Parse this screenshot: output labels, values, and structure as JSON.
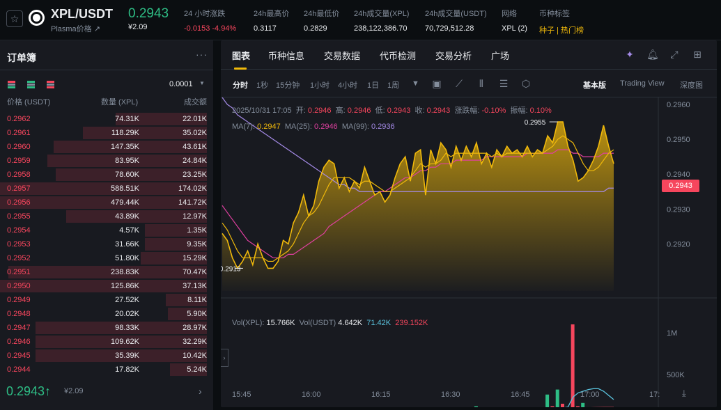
{
  "header": {
    "symbol": "XPL/USDT",
    "subname": "Plasma价格 ↗",
    "last_price": "0.2943",
    "cny_price": "¥2.09",
    "stats": [
      {
        "label": "24 小时涨跌",
        "value": "-0.0153 -4.94%",
        "color": "#f6465d",
        "x": 264
      },
      {
        "label": "24h最高价",
        "value": "0.3117",
        "color": "#eaecef",
        "x": 364
      },
      {
        "label": "24h最低价",
        "value": "0.2829",
        "color": "#eaecef",
        "x": 436
      },
      {
        "label": "24h成交量(XPL)",
        "value": "238,122,386.70",
        "color": "#eaecef",
        "x": 508
      },
      {
        "label": "24h成交量(USDT)",
        "value": "70,729,512.28",
        "color": "#eaecef",
        "x": 610
      },
      {
        "label": "网络",
        "value": "XPL (2)",
        "color": "#eaecef",
        "x": 720
      },
      {
        "label": "币种标签",
        "value": "种子 | 热门榜",
        "color": "#f0b90b",
        "x": 774
      }
    ]
  },
  "orderbook": {
    "title": "订单簿",
    "precision": "0.0001",
    "columns": {
      "price": "价格 (USDT)",
      "qty": "数量 (XPL)",
      "total": "成交额"
    },
    "asks": [
      {
        "price": "0.2962",
        "qty": "74.31K",
        "total": "22.01K",
        "depth": 0.44
      },
      {
        "price": "0.2961",
        "qty": "118.29K",
        "total": "35.02K",
        "depth": 0.6
      },
      {
        "price": "0.2960",
        "qty": "147.35K",
        "total": "43.61K",
        "depth": 0.74
      },
      {
        "price": "0.2959",
        "qty": "83.95K",
        "total": "24.84K",
        "depth": 0.77
      },
      {
        "price": "0.2958",
        "qty": "78.60K",
        "total": "23.25K",
        "depth": 0.73
      },
      {
        "price": "0.2957",
        "qty": "588.51K",
        "total": "174.02K",
        "depth": 1.0
      },
      {
        "price": "0.2956",
        "qty": "479.44K",
        "total": "141.72K",
        "depth": 1.0
      },
      {
        "price": "0.2955",
        "qty": "43.89K",
        "total": "12.97K",
        "depth": 0.68
      },
      {
        "price": "0.2954",
        "qty": "4.57K",
        "total": "1.35K",
        "depth": 0.3
      },
      {
        "price": "0.2953",
        "qty": "31.66K",
        "total": "9.35K",
        "depth": 0.3
      },
      {
        "price": "0.2952",
        "qty": "51.80K",
        "total": "15.29K",
        "depth": 0.32
      },
      {
        "price": "0.2951",
        "qty": "238.83K",
        "total": "70.47K",
        "depth": 0.96
      },
      {
        "price": "0.2950",
        "qty": "125.86K",
        "total": "37.13K",
        "depth": 1.0
      },
      {
        "price": "0.2949",
        "qty": "27.52K",
        "total": "8.11K",
        "depth": 0.2
      },
      {
        "price": "0.2948",
        "qty": "20.02K",
        "total": "5.90K",
        "depth": 0.19
      },
      {
        "price": "0.2947",
        "qty": "98.33K",
        "total": "28.97K",
        "depth": 0.83
      },
      {
        "price": "0.2946",
        "qty": "109.62K",
        "total": "32.29K",
        "depth": 0.83
      },
      {
        "price": "0.2945",
        "qty": "35.39K",
        "total": "10.42K",
        "depth": 0.83
      },
      {
        "price": "0.2944",
        "qty": "17.82K",
        "total": "5.24K",
        "depth": 0.18
      }
    ],
    "last_price": "0.2943↑",
    "last_cny": "¥2.09"
  },
  "chart_tabs": [
    "图表",
    "币种信息",
    "交易数据",
    "代币检测",
    "交易分析",
    "广场"
  ],
  "intervals": [
    "分时",
    "1秒",
    "15分钟",
    "1小时",
    "4小时",
    "1日",
    "1周"
  ],
  "views": [
    "基本版",
    "Trading View",
    "深度图"
  ],
  "ohlc": {
    "date": "2025/10/31 17:05",
    "open_label": "开:",
    "open": "0.2946",
    "high_label": "高:",
    "high": "0.2946",
    "low_label": "低:",
    "low": "0.2943",
    "close_label": "收:",
    "close": "0.2943",
    "change_label": "涨跌幅:",
    "change": "-0.10%",
    "amp_label": "振幅:",
    "amp": "0.10%"
  },
  "ma": {
    "ma7_label": "MA(7):",
    "ma7": "0.2947",
    "ma25_label": "MA(25):",
    "ma25": "0.2946",
    "ma99_label": "MA(99):",
    "ma99": "0.2936"
  },
  "vol": {
    "vxpl_label": "Vol(XPL):",
    "vxpl": "15.766K",
    "vusdt_label": "Vol(USDT)",
    "vusdt": "4.642K",
    "v1": "71.42K",
    "v2": "239.152K"
  },
  "current_price_tag": "0.2943",
  "colors": {
    "up": "#2ebd85",
    "down": "#f6465d",
    "accent": "#f0b90b",
    "ma7": "#f0b90b",
    "ma25": "#e040a0",
    "ma99": "#a58be8"
  },
  "chart_data": {
    "type": "area",
    "price_ticks": [
      "0.2960",
      "0.2950",
      "0.2940",
      "0.2930",
      "0.2920"
    ],
    "price_tick_values": [
      0.296,
      0.295,
      0.294,
      0.293,
      0.292
    ],
    "time_ticks": [
      "15:45",
      "16:00",
      "16:15",
      "16:30",
      "16:45",
      "17:00",
      "17:"
    ],
    "volume_ticks": [
      "1M",
      "500K"
    ],
    "ylim": [
      0.29065,
      0.2962
    ],
    "annotations": [
      {
        "label": "0.2955",
        "value": 0.2955
      },
      {
        "label": "0.2913",
        "value": 0.2913
      }
    ],
    "price": [
      0.2923,
      0.2921,
      0.2916,
      0.2913,
      0.2915,
      0.2918,
      0.2914,
      0.292,
      0.2916,
      0.2913,
      0.2913,
      0.2915,
      0.2921,
      0.292,
      0.2926,
      0.2929,
      0.2934,
      0.2928,
      0.2931,
      0.2938,
      0.2942,
      0.2944,
      0.2943,
      0.2936,
      0.2939,
      0.2935,
      0.2938,
      0.2936,
      0.2942,
      0.2938,
      0.2934,
      0.2935,
      0.2932,
      0.2934,
      0.2939,
      0.2943,
      0.2945,
      0.2938,
      0.2946,
      0.2947,
      0.2934,
      0.2947,
      0.2943,
      0.2949,
      0.2947,
      0.2942,
      0.2948,
      0.2944,
      0.2948,
      0.2945,
      0.2949,
      0.2943,
      0.2946,
      0.2942,
      0.2947,
      0.2945,
      0.2948,
      0.2946,
      0.2947,
      0.2945,
      0.2948,
      0.2945,
      0.2947,
      0.2946,
      0.2951,
      0.2949,
      0.2955,
      0.2955,
      0.2948,
      0.2944,
      0.2938,
      0.2939,
      0.2941,
      0.2944,
      0.2948,
      0.2954,
      0.2948,
      0.2943
    ],
    "ma7": [
      0.2926,
      0.2924,
      0.2921,
      0.2918,
      0.2916,
      0.2916,
      0.2916,
      0.2916,
      0.2916,
      0.2915,
      0.2915,
      0.2916,
      0.2917,
      0.2918,
      0.292,
      0.2923,
      0.2926,
      0.2928,
      0.2929,
      0.2931,
      0.2934,
      0.2937,
      0.2939,
      0.2939,
      0.2939,
      0.2939,
      0.2938,
      0.2937,
      0.2938,
      0.2938,
      0.2937,
      0.2936,
      0.2935,
      0.2935,
      0.2936,
      0.2937,
      0.2938,
      0.2939,
      0.2941,
      0.2943,
      0.2942,
      0.2943,
      0.2943,
      0.2944,
      0.2946,
      0.2945,
      0.2946,
      0.2946,
      0.2946,
      0.2946,
      0.2946,
      0.2946,
      0.2946,
      0.2945,
      0.2946,
      0.2945,
      0.2946,
      0.2946,
      0.2946,
      0.2946,
      0.2946,
      0.2946,
      0.2946,
      0.2946,
      0.2947,
      0.2948,
      0.295,
      0.2951,
      0.295,
      0.2949,
      0.2946,
      0.2943,
      0.2941,
      0.2941,
      0.2942,
      0.2944,
      0.2946,
      0.2947
    ],
    "ma25": [
      0.2931,
      0.2929,
      0.2927,
      0.2925,
      0.2923,
      0.2921,
      0.292,
      0.2919,
      0.2918,
      0.2917,
      0.2916,
      0.2916,
      0.2916,
      0.2917,
      0.2917,
      0.2918,
      0.2919,
      0.292,
      0.2921,
      0.2922,
      0.2923,
      0.2925,
      0.2926,
      0.2927,
      0.2928,
      0.2929,
      0.293,
      0.2931,
      0.2932,
      0.2933,
      0.2934,
      0.2935,
      0.2935,
      0.2936,
      0.2937,
      0.2938,
      0.2939,
      0.2939,
      0.294,
      0.2941,
      0.2941,
      0.2942,
      0.2942,
      0.2943,
      0.2943,
      0.2943,
      0.2944,
      0.2944,
      0.2944,
      0.2944,
      0.2944,
      0.2944,
      0.2945,
      0.2945,
      0.2945,
      0.2945,
      0.2945,
      0.2945,
      0.2945,
      0.2945,
      0.2946,
      0.2946,
      0.2946,
      0.2946,
      0.2946,
      0.2946,
      0.2947,
      0.2947,
      0.2947,
      0.2946,
      0.2946,
      0.2945,
      0.2945,
      0.2945,
      0.2945,
      0.2946,
      0.2946,
      0.2946
    ],
    "ma99": [
      0.2962,
      0.296,
      0.2959,
      0.2957,
      0.2956,
      0.2955,
      0.2954,
      0.2953,
      0.2952,
      0.2951,
      0.295,
      0.2949,
      0.2948,
      0.2947,
      0.2946,
      0.2945,
      0.2944,
      0.2943,
      0.2942,
      0.2941,
      0.294,
      0.2939,
      0.2938,
      0.2937,
      0.2937,
      0.2936,
      0.2936,
      0.2935,
      0.2935,
      0.2935,
      0.2935,
      0.2935,
      0.2935,
      0.2935,
      0.2935,
      0.2935,
      0.2935,
      0.2935,
      0.2935,
      0.2935,
      0.2935,
      0.2935,
      0.2935,
      0.2935,
      0.2935,
      0.2935,
      0.2935,
      0.2935,
      0.2935,
      0.2935,
      0.2935,
      0.2935,
      0.2935,
      0.2935,
      0.2935,
      0.2935,
      0.2935,
      0.2935,
      0.2935,
      0.2935,
      0.2935,
      0.2935,
      0.2935,
      0.2935,
      0.2935,
      0.2935,
      0.2935,
      0.2935,
      0.2935,
      0.2935,
      0.2935,
      0.2935,
      0.2935,
      0.2935,
      0.2935,
      0.2935,
      0.2936,
      0.2936
    ],
    "volume": [
      60,
      20,
      15,
      40,
      25,
      20,
      30,
      20,
      25,
      25,
      20,
      35,
      15,
      20,
      25,
      20,
      30,
      20,
      25,
      20,
      45,
      25,
      30,
      20,
      20,
      25,
      20,
      30,
      20,
      25,
      15,
      20,
      25,
      30,
      20,
      25,
      20,
      30,
      20,
      35,
      20,
      25,
      20,
      50,
      25,
      20,
      30,
      25,
      20,
      25,
      120,
      40,
      30,
      20,
      25,
      20,
      30,
      25,
      40,
      25,
      20,
      30,
      25,
      20,
      260,
      120,
      320,
      150,
      60,
      1100,
      120,
      160,
      60,
      40,
      30,
      50,
      40,
      60
    ],
    "vol_up": [
      0,
      1,
      0,
      0,
      0,
      1,
      0,
      1,
      0,
      0,
      1,
      1,
      0,
      1,
      1,
      0,
      1,
      0,
      1,
      1,
      1,
      0,
      0,
      1,
      0,
      0,
      1,
      0,
      1,
      0,
      0,
      1,
      0,
      1,
      1,
      1,
      0,
      0,
      1,
      1,
      0,
      1,
      0,
      1,
      0,
      0,
      1,
      0,
      1,
      0,
      1,
      0,
      1,
      0,
      1,
      0,
      1,
      0,
      1,
      0,
      1,
      0,
      1,
      0,
      1,
      0,
      1,
      0,
      0,
      0,
      0,
      1,
      1,
      1,
      1,
      1,
      0,
      0
    ],
    "vol_ma1": [
      40,
      38,
      36,
      34,
      32,
      30,
      29,
      28,
      27,
      26,
      26,
      25,
      25,
      25,
      25,
      24,
      24,
      24,
      24,
      24,
      24,
      25,
      25,
      25,
      24,
      24,
      24,
      24,
      24,
      24,
      24,
      23,
      23,
      23,
      24,
      24,
      24,
      24,
      24,
      24,
      24,
      24,
      24,
      25,
      26,
      27,
      27,
      27,
      27,
      27,
      30,
      32,
      33,
      32,
      32,
      31,
      31,
      31,
      31,
      31,
      30,
      30,
      30,
      30,
      50,
      62,
      85,
      100,
      110,
      230,
      280,
      300,
      320,
      330,
      330,
      300,
      250,
      200
    ],
    "vol_ma2": [
      50,
      48,
      46,
      44,
      42,
      40,
      39,
      38,
      37,
      36,
      35,
      34,
      34,
      34,
      33,
      33,
      33,
      33,
      33,
      33,
      34,
      34,
      34,
      34,
      34,
      34,
      34,
      34,
      34,
      33,
      33,
      33,
      33,
      33,
      33,
      33,
      33,
      33,
      33,
      34,
      34,
      34,
      34,
      35,
      35,
      35,
      35,
      35,
      35,
      36,
      38,
      39,
      40,
      40,
      40,
      40,
      40,
      40,
      41,
      41,
      41,
      41,
      41,
      41,
      48,
      52,
      60,
      64,
      66,
      90,
      96,
      100,
      102,
      104,
      105,
      106,
      106,
      106
    ]
  }
}
